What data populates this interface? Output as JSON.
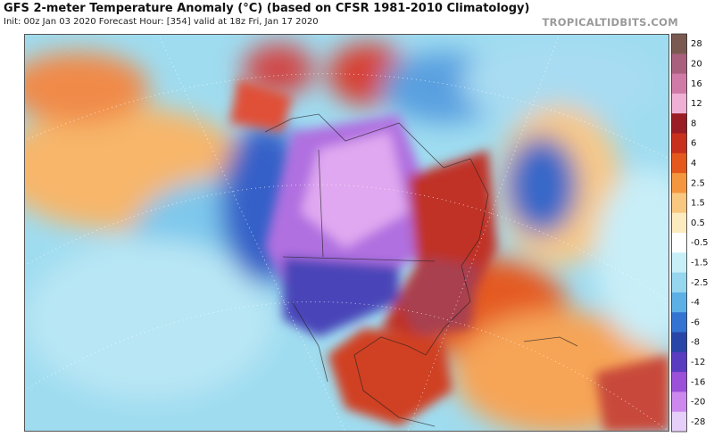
{
  "header": {
    "title": "GFS 2-meter Temperature Anomaly (°C) (based on CFSR 1981-2010 Climatology)",
    "subtitle": "Init: 00z Jan 03 2020   Forecast Hour: [354]   valid at 18z Fri, Jan 17 2020",
    "credit": "TROPICALTIDBITS.COM"
  },
  "colorbar": {
    "labels": [
      28,
      20,
      16,
      12,
      8,
      6,
      4,
      2.5,
      1.5,
      0.5,
      -0.5,
      -1.5,
      -2.5,
      -4,
      -6,
      -8,
      -12,
      -16,
      -20,
      -28
    ],
    "colors": [
      "#7a5a50",
      "#a8607c",
      "#d07aa8",
      "#eeb0d4",
      "#9a1c24",
      "#c8301e",
      "#e4581e",
      "#f4963e",
      "#f9c880",
      "#fdebc0",
      "#ffffff",
      "#c8eef8",
      "#96d6ee",
      "#5cb0e6",
      "#3374d2",
      "#2846a8",
      "#5a3cc0",
      "#9a50d8",
      "#cc88ee",
      "#e6cff8"
    ]
  }
}
